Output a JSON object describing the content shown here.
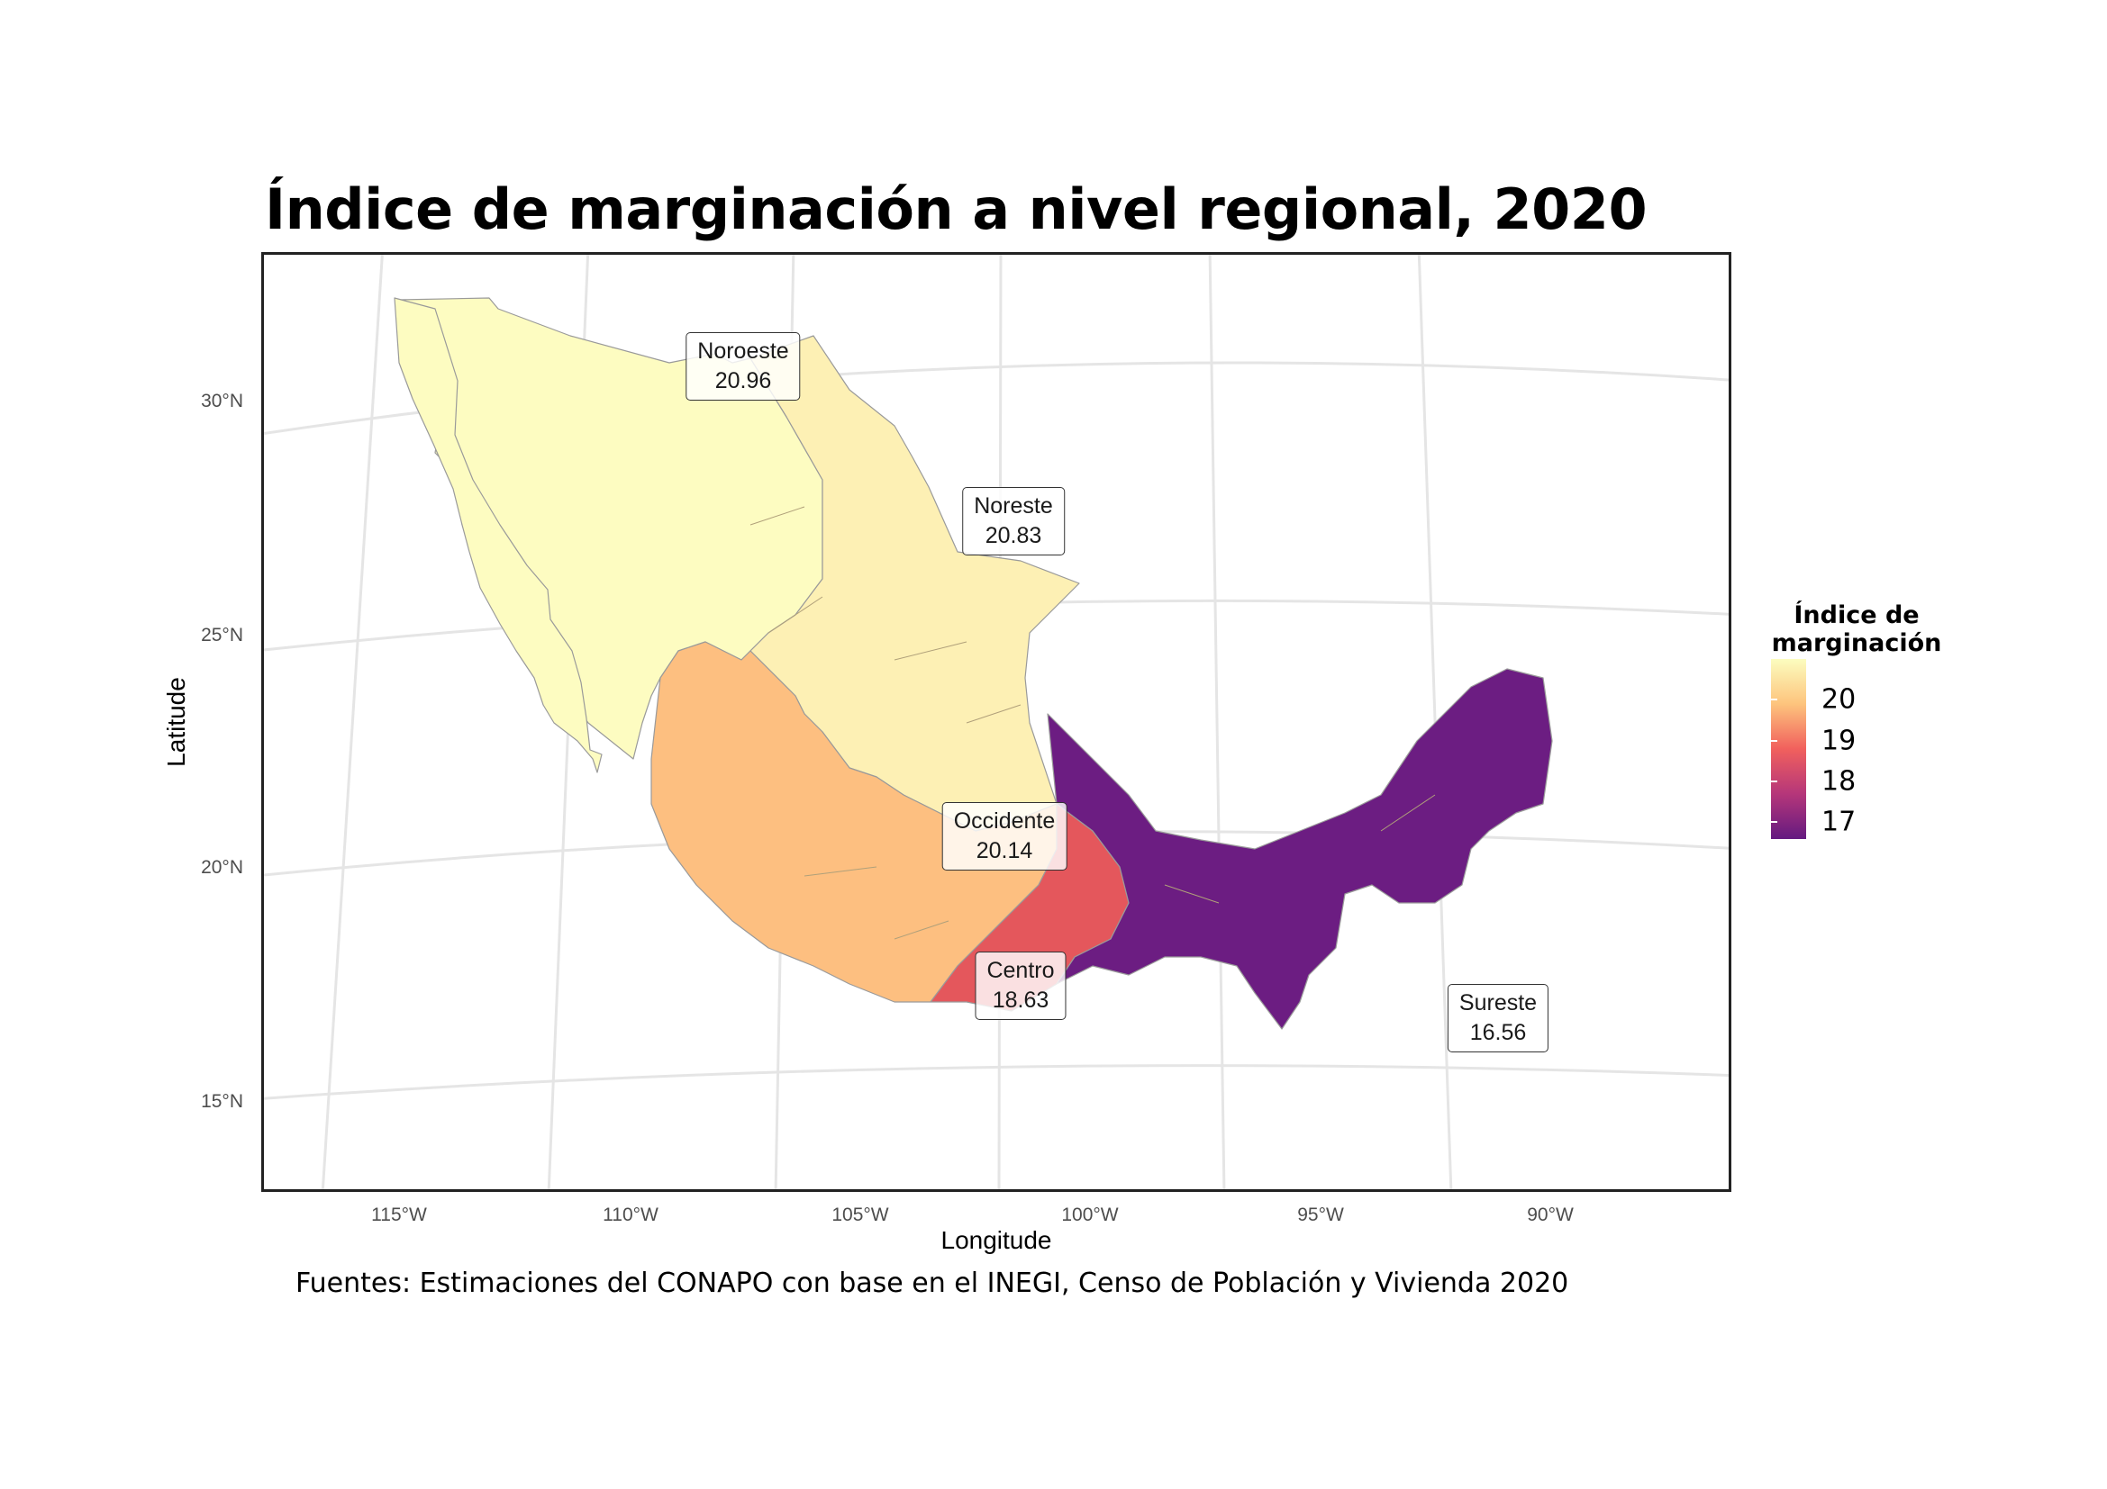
{
  "title": "Índice de marginación a nivel regional, 2020",
  "source": "Fuentes: Estimaciones del CONAPO con base en el INEGI, Censo de Población y Vivienda 2020",
  "axes": {
    "x_title": "Longitude",
    "y_title": "Latitude",
    "x_ticks": [
      "115°W",
      "110°W",
      "105°W",
      "100°W",
      "95°W",
      "90°W"
    ],
    "y_ticks": [
      "30°N",
      "25°N",
      "20°N",
      "15°N"
    ]
  },
  "legend": {
    "title_line1": "Índice de",
    "title_line2": "marginación",
    "labels": [
      "20",
      "19",
      "18",
      "17"
    ],
    "colors": [
      "#fcfdbf",
      "#fdc47d",
      "#f1605d",
      "#b5367a",
      "#641a80"
    ]
  },
  "regions": [
    {
      "name": "Noroeste",
      "value": "20.96",
      "color": "#fdfcc1"
    },
    {
      "name": "Noreste",
      "value": "20.83",
      "color": "#fdf0b4"
    },
    {
      "name": "Occidente",
      "value": "20.14",
      "color": "#fdbf80"
    },
    {
      "name": "Centro",
      "value": "18.63",
      "color": "#e4575c"
    },
    {
      "name": "Sureste",
      "value": "16.56",
      "color": "#6c1d82"
    }
  ]
}
